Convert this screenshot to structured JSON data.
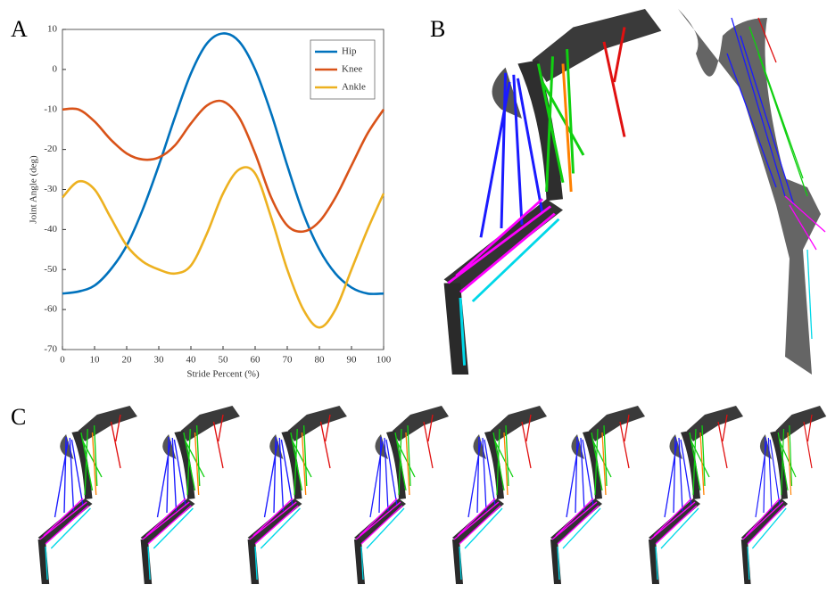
{
  "panel_labels": [
    "A",
    "B",
    "C"
  ],
  "chart_data": {
    "type": "line",
    "x_label": "Stride Percent (%)",
    "y_label": "Joint Angle (deg)",
    "x": [
      0,
      5,
      10,
      15,
      20,
      25,
      30,
      35,
      40,
      45,
      50,
      55,
      60,
      65,
      70,
      75,
      80,
      85,
      90,
      95,
      100
    ],
    "series": [
      {
        "name": "Hip",
        "color": "#0072bd",
        "values": [
          -56,
          -55.5,
          -54,
          -50,
          -44,
          -35,
          -24,
          -12,
          -1,
          6.5,
          9,
          7,
          0,
          -11,
          -24,
          -36,
          -45,
          -51,
          -54.5,
          -56,
          -56
        ]
      },
      {
        "name": "Knee",
        "color": "#d95319",
        "values": [
          -10,
          -10,
          -13,
          -17.5,
          -21,
          -22.5,
          -22,
          -19,
          -13.5,
          -9,
          -8,
          -12,
          -21,
          -32,
          -39,
          -40.5,
          -38,
          -32,
          -24,
          -16,
          -10
        ]
      },
      {
        "name": "Ankle",
        "color": "#edb120",
        "values": [
          -32,
          -28,
          -30,
          -37,
          -44,
          -48,
          -50,
          -51,
          -49,
          -41,
          -31,
          -25,
          -26,
          -37,
          -50,
          -60,
          -64.5,
          -60,
          -50,
          -40,
          -31
        ]
      }
    ],
    "xlim": [
      0,
      100
    ],
    "xticks": [
      0,
      10,
      20,
      30,
      40,
      50,
      60,
      70,
      80,
      90,
      100
    ],
    "ylim": [
      -70,
      10
    ],
    "yticks": [
      -70,
      -60,
      -50,
      -40,
      -30,
      -20,
      -10,
      0,
      10
    ],
    "legend": "upper right"
  }
}
